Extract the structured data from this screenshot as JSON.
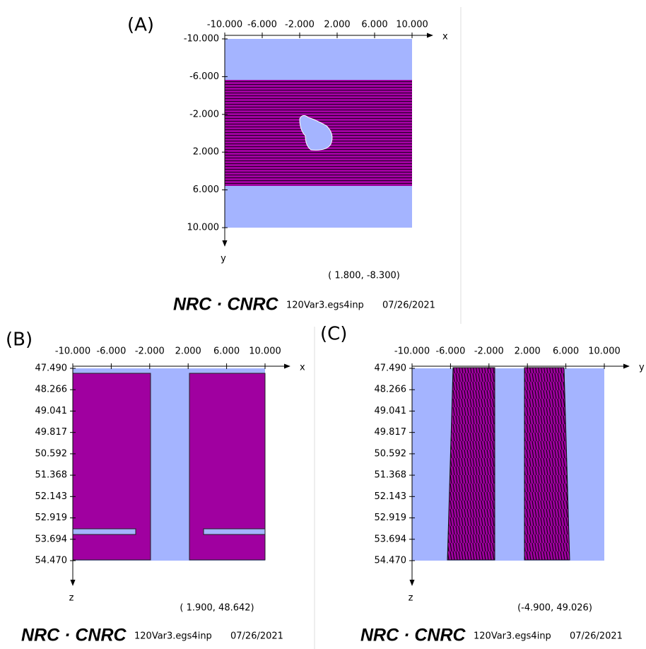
{
  "panels": [
    {
      "label": "(A)",
      "x_axis_name": "x",
      "y_axis_name": "y",
      "x_ticks": [
        "-10.000",
        "-6.000",
        "-2.000",
        "2.000",
        "6.000",
        "10.000"
      ],
      "y_ticks": [
        "-10.000",
        "-6.000",
        "-2.000",
        "2.000",
        "6.000",
        "10.000"
      ],
      "coordinates": "( 1.800, -8.300)",
      "footer": {
        "logo": "NRC · CNRC",
        "file": "120Var3.egs4inp",
        "date": "07/26/2021"
      }
    },
    {
      "label": "(B)",
      "x_axis_name": "x",
      "y_axis_name": "z",
      "x_ticks": [
        "-10.000",
        "-6.000",
        "-2.000",
        "2.000",
        "6.000",
        "10.000"
      ],
      "y_ticks": [
        "47.490",
        "48.266",
        "49.041",
        "49.817",
        "50.592",
        "51.368",
        "52.143",
        "52.919",
        "53.694",
        "54.470"
      ],
      "coordinates": "( 1.900, 48.642)",
      "footer": {
        "logo": "NRC · CNRC",
        "file": "120Var3.egs4inp",
        "date": "07/26/2021"
      }
    },
    {
      "label": "(C)",
      "x_axis_name": "y",
      "y_axis_name": "z",
      "x_ticks": [
        "-10.000",
        "-6.000",
        "-2.000",
        "2.000",
        "6.000",
        "10.000"
      ],
      "y_ticks": [
        "47.490",
        "48.266",
        "49.041",
        "49.817",
        "50.592",
        "51.368",
        "52.143",
        "52.919",
        "53.694",
        "54.470"
      ],
      "coordinates": "(-4.900, 49.026)",
      "footer": {
        "logo": "NRC · CNRC",
        "file": "120Var3.egs4inp",
        "date": "07/26/2021"
      }
    }
  ]
}
